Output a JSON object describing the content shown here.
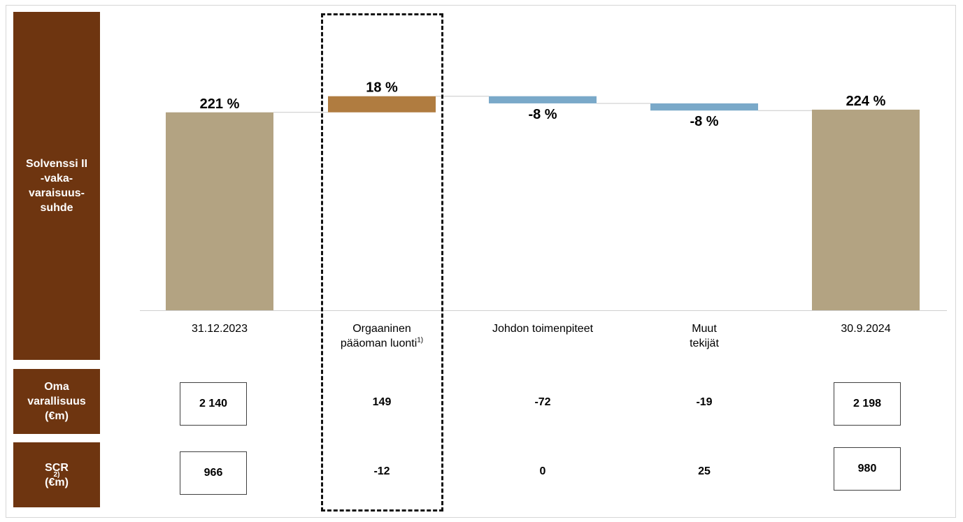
{
  "side_labels": {
    "ratio": [
      "Solvenssi II",
      "-vaka-",
      "varaisuus-",
      "suhde"
    ],
    "own_funds": [
      "Oma",
      "varallisuus",
      "(€m)"
    ],
    "scr": {
      "line1": "SCR",
      "sup": "2)",
      "line2": "(€m)"
    }
  },
  "colors": {
    "panel": "#6e3510",
    "total_bar": "#b3a382",
    "positive_bar": "#b07c40",
    "negative_bar": "#7aa9c9",
    "highlight_border": "#111111"
  },
  "chart_data": {
    "type": "bar",
    "subtype": "waterfall",
    "categories": [
      "31.12.2023",
      "Orgaaninen pääoman luonti",
      "Johdon toimenpiteet",
      "Muut tekijät",
      "30.9.2024"
    ],
    "category_lines": [
      [
        "31.12.2023"
      ],
      [
        "Orgaaninen",
        "pääoman luonti"
      ],
      [
        "Johdon toimenpiteet"
      ],
      [
        "Muut",
        "tekijät"
      ],
      [
        "30.9.2024"
      ]
    ],
    "category_superscripts": [
      "",
      "1)",
      "",
      "",
      ""
    ],
    "values": [
      221,
      18,
      -8,
      -8,
      224
    ],
    "labels": [
      "221 %",
      "18 %",
      "-8 %",
      "-8 %",
      "224 %"
    ],
    "kinds": [
      "total",
      "increase",
      "decrease",
      "decrease",
      "total"
    ],
    "unit": "%",
    "title": "",
    "xlabel": "",
    "ylabel": "",
    "ylim": [
      0,
      245
    ],
    "grid": false,
    "legend": "none",
    "highlighted_category": "Orgaaninen pääoman luonti"
  },
  "table": {
    "own_funds": [
      "2 140",
      "149",
      "-72",
      "-19",
      "2 198"
    ],
    "scr": [
      "966",
      "-12",
      "0",
      "25",
      "980"
    ],
    "boxed": [
      true,
      false,
      false,
      false,
      true
    ]
  }
}
